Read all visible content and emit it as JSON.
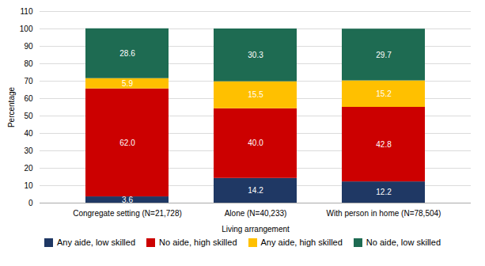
{
  "chart_data": {
    "type": "bar",
    "stacked": true,
    "categories": [
      "Congregate setting (N=21,728)",
      "Alone (N=40,233)",
      "With person in home (N=78,504)"
    ],
    "xlabel": "Living arrangement",
    "ylabel": "Percentage",
    "ylim": [
      0,
      110
    ],
    "yticks": [
      0,
      10,
      20,
      30,
      40,
      50,
      60,
      70,
      80,
      90,
      100,
      110
    ],
    "grid": true,
    "data_labels": true,
    "legend": "bottom",
    "series": [
      {
        "name": "Any aide, low skilled",
        "color": "#1f3864",
        "values": [
          3.6,
          14.2,
          12.2
        ]
      },
      {
        "name": "No aide, high skilled",
        "color": "#cc0000",
        "values": [
          62.0,
          40.0,
          42.8
        ],
        "value_labels": [
          "62.0",
          "40.0",
          "42.8"
        ]
      },
      {
        "name": "Any aide, high skilled",
        "color": "#ffc000",
        "values": [
          5.9,
          15.5,
          15.2
        ]
      },
      {
        "name": "No aide, low skilled",
        "color": "#1e6b52",
        "values": [
          28.6,
          30.3,
          29.7
        ]
      }
    ]
  }
}
